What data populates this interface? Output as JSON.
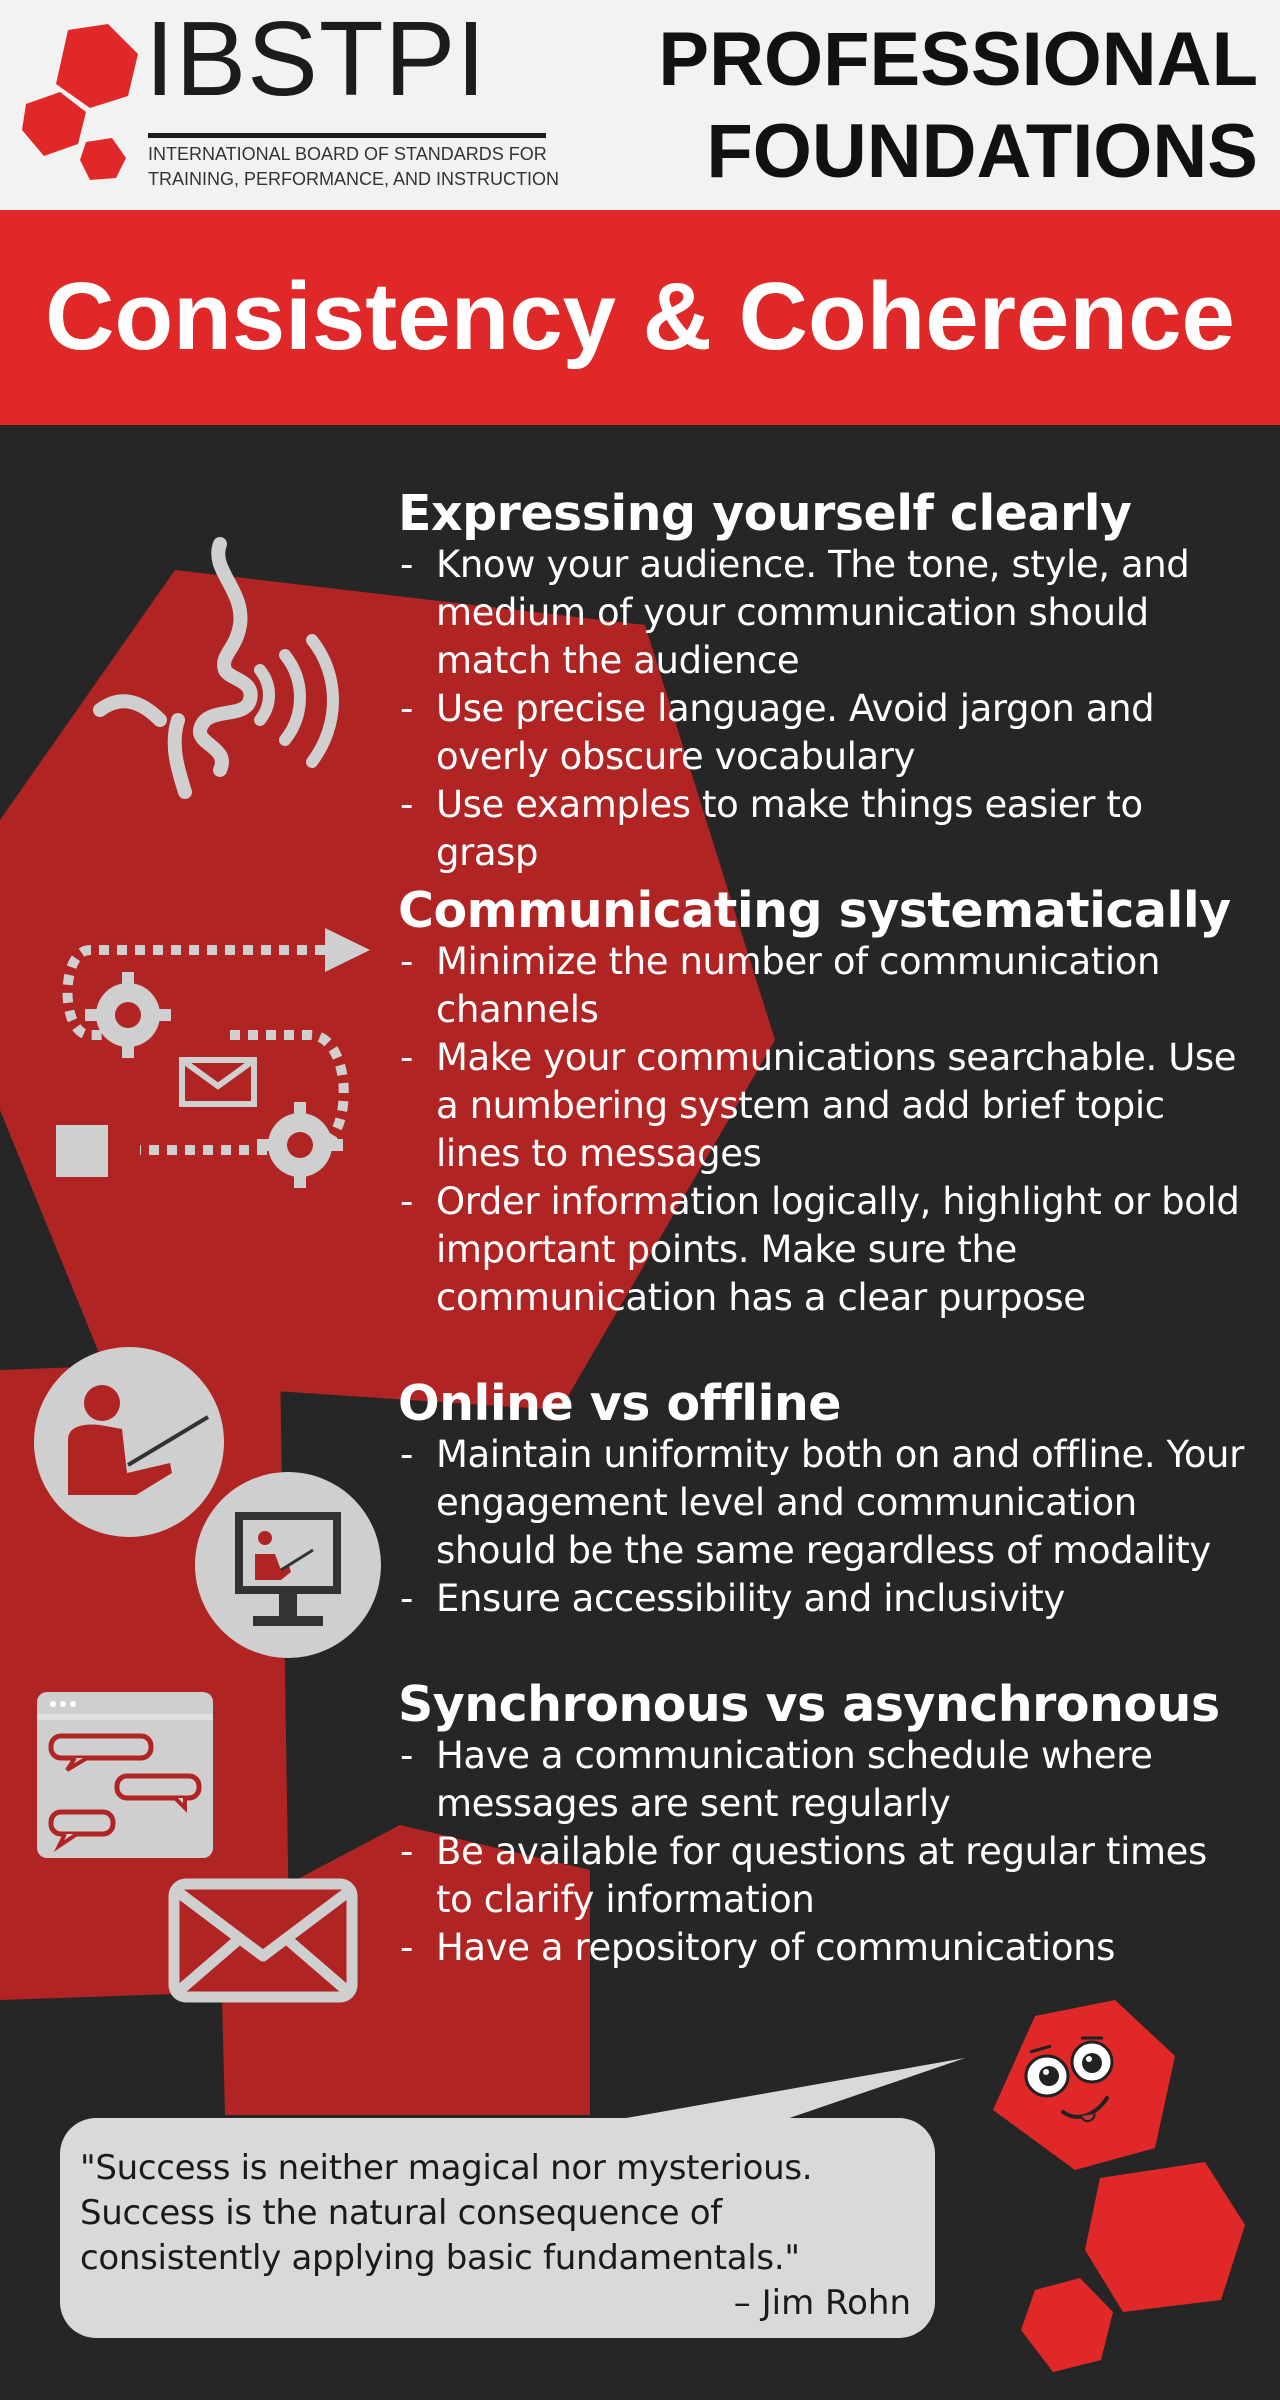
{
  "header": {
    "logo_text": "IBSTPI",
    "logo_subtitle_line1": "INTERNATIONAL BOARD OF STANDARDS FOR",
    "logo_subtitle_line2": "TRAINING, PERFORMANCE, AND INSTRUCTION",
    "title_line1": "PROFESSIONAL",
    "title_line2": "FOUNDATIONS"
  },
  "banner": {
    "title": "Consistency & Coherence"
  },
  "sections": [
    {
      "heading": "Expressing yourself clearly",
      "icon": "speaking-head-icon",
      "bullets": [
        "Know your audience. The tone, style, and medium of your communication should match the audience",
        "Use precise language. Avoid jargon and overly obscure vocabulary",
        "Use examples to make things easier to grasp"
      ]
    },
    {
      "heading": "Communicating systematically",
      "icon": "process-flow-icon",
      "bullets": [
        "Minimize the number of communication channels",
        "Make your communications searchable. Use a numbering system and add brief topic lines to messages",
        "Order information logically, highlight or bold important points. Make sure the communication has a clear purpose"
      ]
    },
    {
      "heading": "Online vs offline",
      "icon": "teacher-icon",
      "bullets": [
        "Maintain uniformity both on and offline. Your engagement level and communication should be the same regardless of modality",
        "Ensure accessibility and inclusivity"
      ]
    },
    {
      "heading": "Synchronous vs asynchronous",
      "icon": "chat-window-icon",
      "bullets": [
        "Have a communication schedule where messages are sent regularly",
        "Be available for questions at regular times to clarify information",
        "Have a repository of communications"
      ]
    }
  ],
  "quote": {
    "text": "\"Success is neither magical nor mysterious. Success is the natural consequence of consistently applying basic fundamentals.\"",
    "author": "– Jim Rohn"
  },
  "colors": {
    "brand_red": "#e12828",
    "dark_background": "#262626",
    "shape_red": "#b02424",
    "icon_gray": "#cfcfcf",
    "header_background": "#f2f2f2"
  }
}
